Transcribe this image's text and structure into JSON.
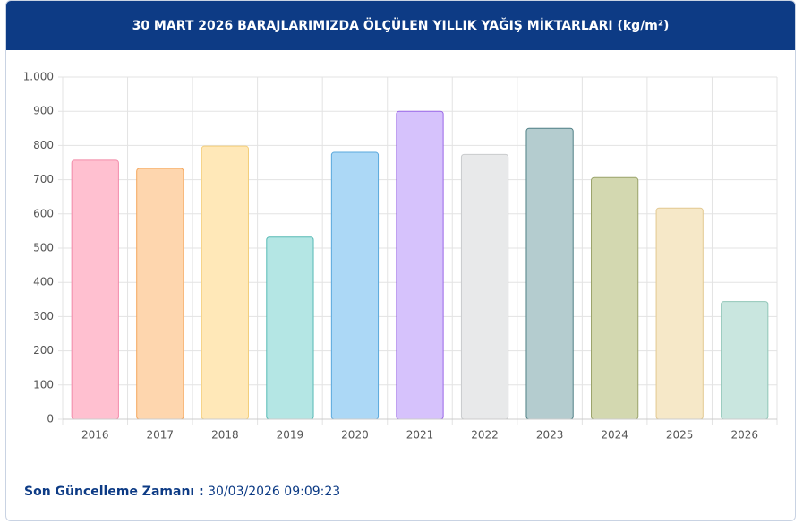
{
  "chart_data": {
    "type": "bar",
    "title": "30 MART 2026 BARAJLARIMIZDA ÖLÇÜLEN YILLIK YAĞIŞ MİKTARLARI (kg/m²)",
    "categories": [
      "2016",
      "2017",
      "2018",
      "2019",
      "2020",
      "2021",
      "2022",
      "2023",
      "2024",
      "2025",
      "2026"
    ],
    "values": [
      757,
      733,
      798,
      532,
      780,
      900,
      774,
      850,
      706,
      617,
      344
    ],
    "colors": [
      "#ffc0d0",
      "#fed6ae",
      "#ffe8b8",
      "#b4e6e4",
      "#acd8f6",
      "#d6c2fc",
      "#e8e9ea",
      "#b4cccf",
      "#d3d8b0",
      "#f6e8c8",
      "#c9e6df"
    ],
    "border_colors": [
      "#f28aa8",
      "#f4a55a",
      "#f3ce7a",
      "#55b9b4",
      "#5aa8dc",
      "#9966e6",
      "#c9cbcd",
      "#4e7f85",
      "#9aa36a",
      "#e2c890",
      "#90c6b8"
    ],
    "ylim": [
      0,
      1000
    ],
    "yticks": [
      0,
      100,
      200,
      300,
      400,
      500,
      600,
      700,
      800,
      900,
      {
        "value": 1000,
        "label": "1.000"
      }
    ],
    "grid": true
  },
  "footer": {
    "label": "Son Güncelleme Zamanı :",
    "value": "30/03/2026 09:09:23"
  }
}
